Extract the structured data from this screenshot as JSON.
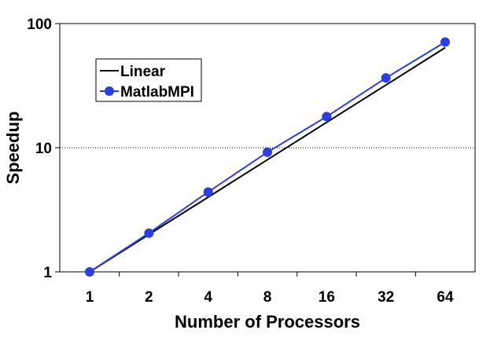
{
  "chart_data": {
    "type": "line",
    "xlabel": "Number of Processors",
    "ylabel": "Speedup",
    "x_scale": "log2",
    "y_scale": "log10",
    "x": [
      1,
      2,
      4,
      8,
      16,
      32,
      64
    ],
    "x_tick_labels": [
      "1",
      "2",
      "4",
      "8",
      "16",
      "32",
      "64"
    ],
    "y_ticks": [
      1,
      10,
      100
    ],
    "y_tick_labels": [
      "1",
      "10",
      "100"
    ],
    "ylim": [
      1,
      100
    ],
    "xlim": [
      0.5,
      90
    ],
    "grid": "horizontal dotted line at 10",
    "legend_position": "upper-left",
    "series": [
      {
        "name": "Linear",
        "color": "#000000",
        "marker": "none",
        "values": [
          1,
          2,
          4,
          8,
          16,
          32,
          64
        ]
      },
      {
        "name": "MatlabMPI",
        "color": "#2b3fe0",
        "marker": "circle",
        "values": [
          1,
          2.05,
          4.4,
          9.2,
          17.8,
          36.5,
          71
        ]
      }
    ]
  }
}
